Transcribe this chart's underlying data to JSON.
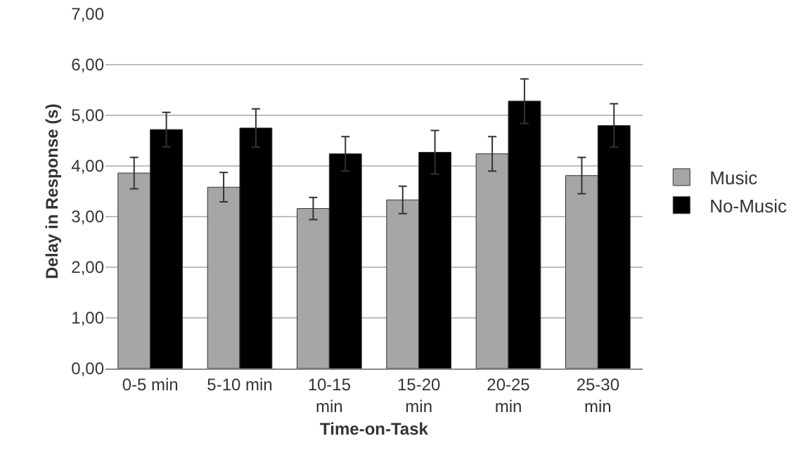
{
  "chart_data": {
    "type": "bar",
    "xlabel": "Time-on-Task",
    "ylabel": "Delay in Response (s)",
    "categories": [
      "0-5 min",
      "5-10 min",
      "10-15 min",
      "15-20 min",
      "20-25 min",
      "25-30 min"
    ],
    "series": [
      {
        "name": "Music",
        "color": "#a6a6a6",
        "values": [
          3.86,
          3.58,
          3.16,
          3.33,
          4.24,
          3.81
        ],
        "errors": [
          0.31,
          0.29,
          0.22,
          0.27,
          0.34,
          0.36
        ]
      },
      {
        "name": "No-Music",
        "color": "#000000",
        "values": [
          4.72,
          4.75,
          4.24,
          4.27,
          5.28,
          4.8
        ],
        "errors": [
          0.34,
          0.38,
          0.34,
          0.43,
          0.44,
          0.43
        ]
      }
    ],
    "ylim": [
      0,
      7
    ],
    "yticks": [
      {
        "value": 0,
        "label": "0,00"
      },
      {
        "value": 1,
        "label": "1,00"
      },
      {
        "value": 2,
        "label": "2,00"
      },
      {
        "value": 3,
        "label": "3,00"
      },
      {
        "value": 4,
        "label": "4,00"
      },
      {
        "value": 5,
        "label": "5,00"
      },
      {
        "value": 6,
        "label": "6,00"
      },
      {
        "value": 7,
        "label": "7,00"
      }
    ],
    "grid": "y",
    "legend": "right"
  }
}
